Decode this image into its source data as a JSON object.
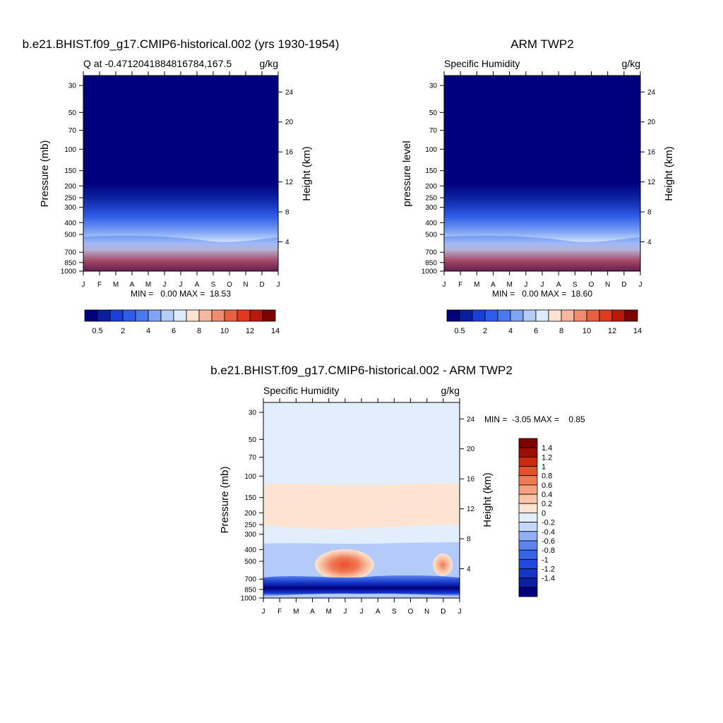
{
  "months": [
    "J",
    "F",
    "M",
    "A",
    "M",
    "J",
    "J",
    "A",
    "S",
    "O",
    "N",
    "D",
    "J"
  ],
  "pressure_ticks": [
    30,
    50,
    70,
    100,
    150,
    200,
    250,
    300,
    400,
    500,
    700,
    850,
    1000
  ],
  "height_ticks": [
    24,
    20,
    16,
    12,
    8,
    4
  ],
  "colors": {
    "abs_scale": [
      "#00007f",
      "#0a1f9e",
      "#1a3fd6",
      "#2f5ce8",
      "#4a78ee",
      "#7ea4f3",
      "#b3cdf8",
      "#ddebfd",
      "#fde3d0",
      "#f6b9a0",
      "#f08c70",
      "#e96040",
      "#e03a1c",
      "#b81a0a",
      "#7f0000"
    ],
    "diff_scale": [
      "#00007f",
      "#0a1f9e",
      "#1535c7",
      "#2348dc",
      "#3b63ea",
      "#5c83f0",
      "#8eaef5",
      "#c2d7fb",
      "#e3eefd",
      "#fde4d2",
      "#f9c4a8",
      "#f5a07f",
      "#ef7a55",
      "#e6512d",
      "#cd2a10",
      "#9c0e02",
      "#7f0000"
    ]
  },
  "chart_data": [
    {
      "type": "heatmap",
      "title": "b.e21.BHIST.f09_g17.CMIP6-historical.002 (yrs 1930-1954)",
      "subtitle_left": "Q at -0.4712041884816784,167.5",
      "subtitle_right": "g/kg",
      "ylabel": "Pressure (mb)",
      "ylabel_right": "Height (km)",
      "stats": "MIN =   0.00 MAX =  18.53",
      "x": [
        "J",
        "F",
        "M",
        "A",
        "M",
        "J",
        "J",
        "A",
        "S",
        "O",
        "N",
        "D",
        "J"
      ],
      "y_pressure": [
        30,
        50,
        70,
        100,
        150,
        200,
        250,
        300,
        400,
        500,
        700,
        850,
        1000
      ],
      "min": 0.0,
      "max": 18.53,
      "colorbar_labels": [
        "0.5",
        "2",
        "4",
        "6",
        "8",
        "10",
        "12",
        "14"
      ],
      "colorbar_levels": [
        0.5,
        1,
        2,
        3,
        4,
        5,
        6,
        7,
        8,
        9,
        10,
        11,
        12,
        13,
        14
      ]
    },
    {
      "type": "heatmap",
      "title": "ARM TWP2",
      "subtitle_left": "Specific Humidity",
      "subtitle_right": "g/kg",
      "ylabel": "pressure level",
      "ylabel_right": "Height (km)",
      "stats": "MIN =   0.00 MAX =  18.60",
      "x": [
        "J",
        "F",
        "M",
        "A",
        "M",
        "J",
        "J",
        "A",
        "S",
        "O",
        "N",
        "D",
        "J"
      ],
      "y_pressure": [
        30,
        50,
        70,
        100,
        150,
        200,
        250,
        300,
        400,
        500,
        700,
        850,
        1000
      ],
      "min": 0.0,
      "max": 18.6,
      "colorbar_labels": [
        "0.5",
        "2",
        "4",
        "6",
        "8",
        "10",
        "12",
        "14"
      ],
      "colorbar_levels": [
        0.5,
        1,
        2,
        3,
        4,
        5,
        6,
        7,
        8,
        9,
        10,
        11,
        12,
        13,
        14
      ]
    },
    {
      "type": "heatmap",
      "title": "b.e21.BHIST.f09_g17.CMIP6-historical.002 - ARM TWP2",
      "subtitle_left": "Specific Humidity",
      "subtitle_right": "g/kg",
      "ylabel": "Pressure (mb)",
      "ylabel_right": "Height (km)",
      "stats": "MIN =  -3.05 MAX =    0.85",
      "x": [
        "J",
        "F",
        "M",
        "A",
        "M",
        "J",
        "J",
        "A",
        "S",
        "O",
        "N",
        "D",
        "J"
      ],
      "y_pressure": [
        30,
        50,
        70,
        100,
        150,
        200,
        250,
        300,
        400,
        500,
        700,
        850,
        1000
      ],
      "min": -3.05,
      "max": 0.85,
      "colorbar_labels": [
        "1.4",
        "1.2",
        "1",
        "0.8",
        "0.6",
        "0.4",
        "0.2",
        "0",
        "-0.2",
        "-0.4",
        "-0.6",
        "-0.8",
        "-1",
        "-1.2",
        "-1.4"
      ]
    }
  ]
}
